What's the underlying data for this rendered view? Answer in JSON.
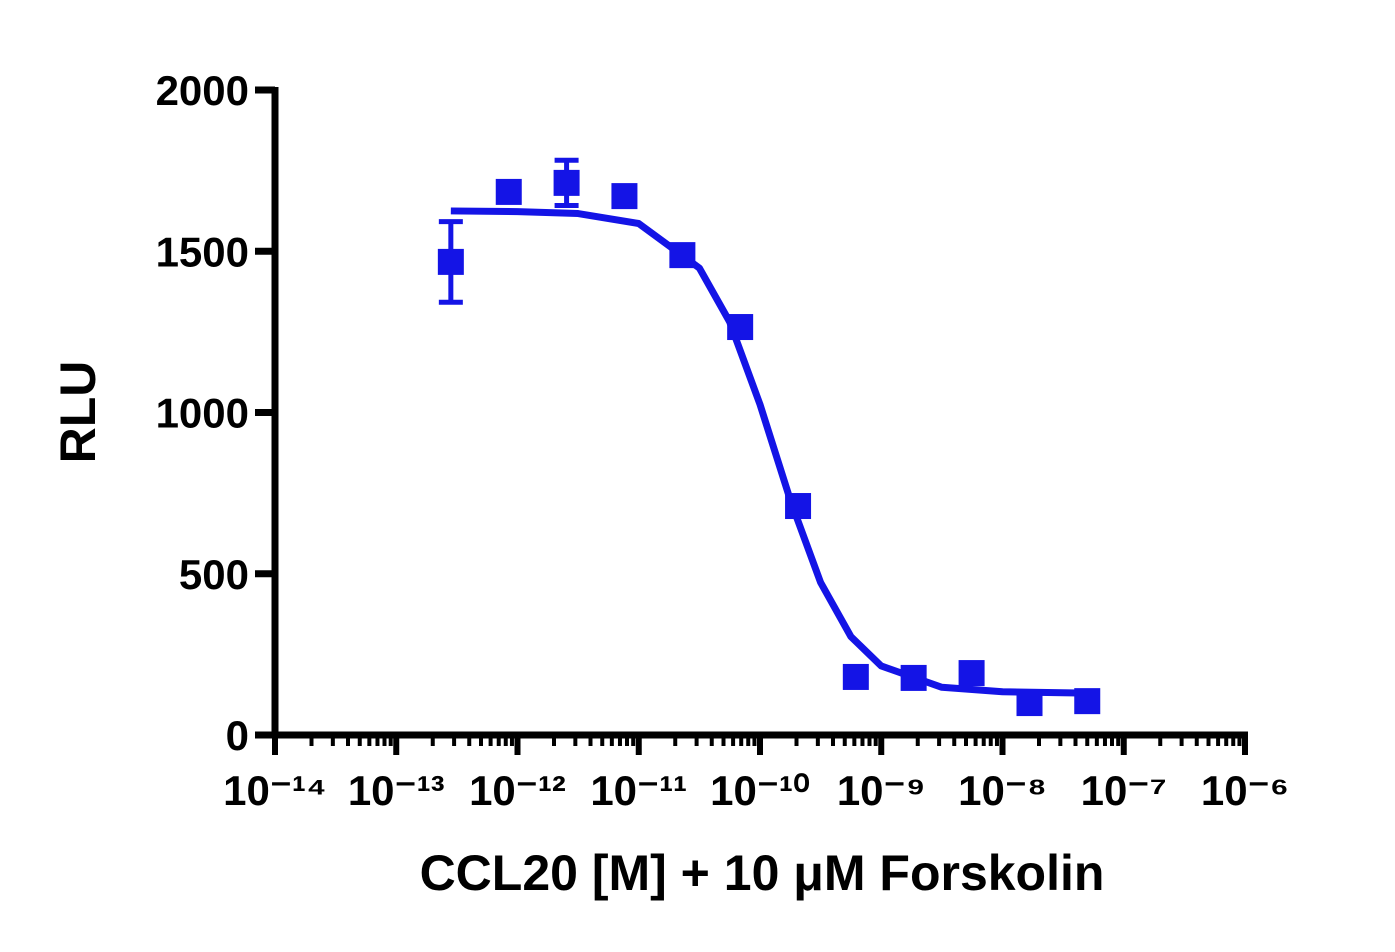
{
  "chart_data": {
    "type": "scatter",
    "xlabel": "CCL20 [M] + 10 μM Forskolin",
    "ylabel": "RLU",
    "xscale": "log",
    "color": "#1414e6",
    "xlim": [
      1e-14,
      1e-06
    ],
    "xticks": [
      {
        "value": 1e-14,
        "label": "10⁻¹⁴"
      },
      {
        "value": 1e-13,
        "label": "10⁻¹³"
      },
      {
        "value": 1e-12,
        "label": "10⁻¹²"
      },
      {
        "value": 1e-11,
        "label": "10⁻¹¹"
      },
      {
        "value": 1e-10,
        "label": "10⁻¹⁰"
      },
      {
        "value": 1e-09,
        "label": "10⁻⁹"
      },
      {
        "value": 1e-08,
        "label": "10⁻⁸"
      },
      {
        "value": 1e-07,
        "label": "10⁻⁷"
      },
      {
        "value": 1e-06,
        "label": "10⁻⁶"
      }
    ],
    "xminorticks": [
      2e-14,
      3e-14,
      4e-14,
      5e-14,
      6e-14,
      7e-14,
      8e-14,
      9e-14,
      2e-13,
      3e-13,
      4e-13,
      5e-13,
      6e-13,
      7e-13,
      8e-13,
      9e-13,
      2e-12,
      3e-12,
      4e-12,
      5e-12,
      6e-12,
      7e-12,
      8e-12,
      9e-12,
      2e-11,
      3e-11,
      4e-11,
      5e-11,
      6e-11,
      7e-11,
      8e-11,
      9e-11,
      2e-10,
      3e-10,
      4e-10,
      5e-10,
      6e-10,
      7e-10,
      8e-10,
      9e-10,
      2e-09,
      3e-09,
      4e-09,
      5e-09,
      6e-09,
      7e-09,
      8e-09,
      9e-09,
      2e-08,
      3e-08,
      4e-08,
      5e-08,
      6e-08,
      7e-08,
      8e-08,
      9e-08,
      2e-07,
      3e-07,
      4e-07,
      5e-07,
      6e-07,
      7e-07,
      8e-07,
      9e-07
    ],
    "ylim": [
      0,
      2000
    ],
    "yticks": [
      0,
      500,
      1000,
      1500,
      2000
    ],
    "series": [
      {
        "color": "#1414e6",
        "x": [
          2.82e-13,
          8.47e-13,
          2.54e-12,
          7.62e-12,
          2.29e-11,
          6.86e-11,
          2.06e-10,
          6.17e-10,
          1.85e-09,
          5.56e-09,
          1.67e-08,
          5e-08
        ],
        "values": [
          1467,
          1684,
          1712,
          1671,
          1488,
          1265,
          710,
          180,
          177,
          192,
          99,
          105
        ],
        "errors": [
          125,
          null,
          70,
          null,
          null,
          null,
          null,
          null,
          null,
          null,
          null,
          null
        ]
      }
    ],
    "fit": {
      "color": "#1414e6",
      "x": [
        2.82e-13,
        1e-12,
        3.16e-12,
        1e-11,
        3.16e-11,
        5.62e-11,
        1e-10,
        1.78e-10,
        3.16e-10,
        5.62e-10,
        1e-09,
        3.16e-09,
        1e-08,
        3.16e-08,
        5e-08
      ],
      "values": [
        1625,
        1623,
        1617,
        1586,
        1448,
        1281,
        1025,
        728,
        473,
        305,
        214,
        148,
        134,
        131,
        130
      ]
    }
  }
}
